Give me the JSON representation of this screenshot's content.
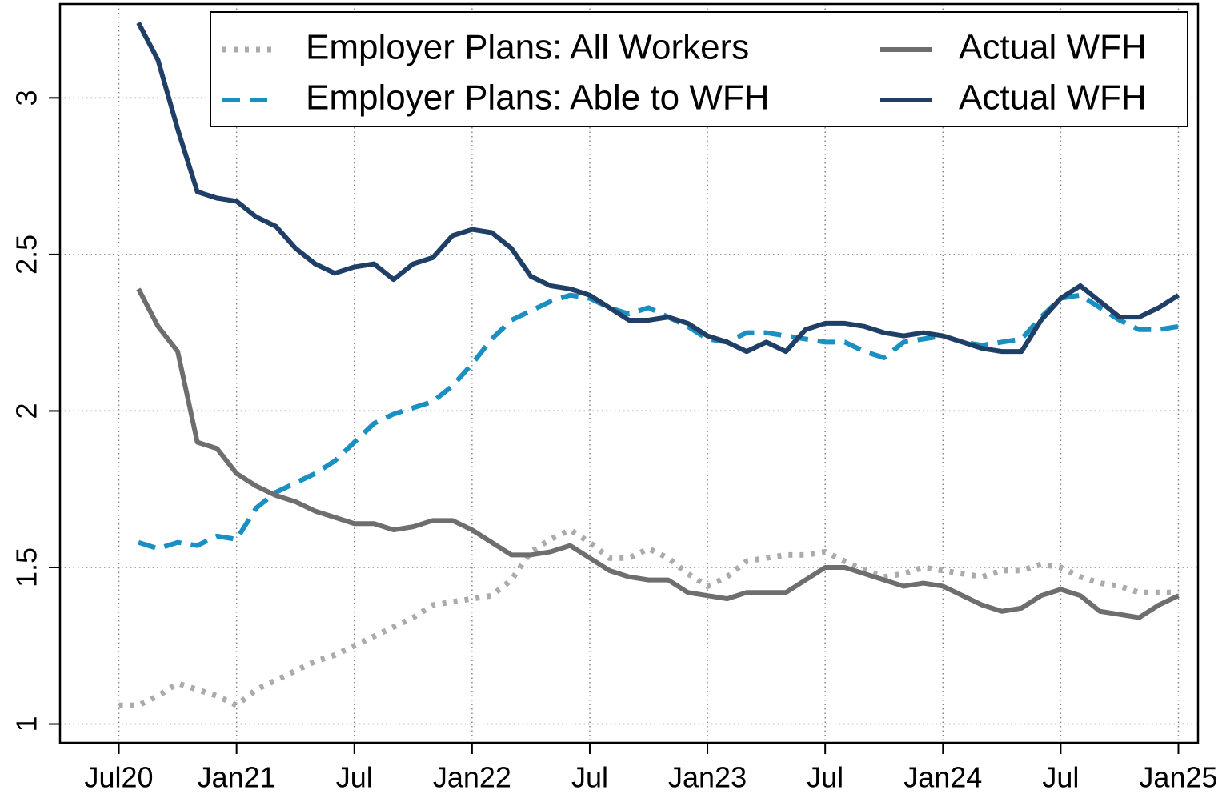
{
  "chart_data": {
    "type": "line",
    "x": [
      0,
      1,
      2,
      3,
      4,
      5,
      6,
      7,
      8,
      9,
      10,
      11,
      12,
      13,
      14,
      15,
      16,
      17,
      18,
      19,
      20,
      21,
      22,
      23,
      24,
      25,
      26,
      27,
      28,
      29,
      30,
      31,
      32,
      33,
      34,
      35,
      36,
      37,
      38,
      39,
      40,
      41,
      42,
      43,
      44,
      45,
      46,
      47,
      48,
      49,
      50,
      51,
      52,
      53,
      54
    ],
    "series": [
      {
        "name": "Employer Plans: All Workers",
        "color": "#ababab",
        "dash": "dotted",
        "values": [
          1.06,
          1.06,
          1.09,
          1.13,
          1.11,
          1.09,
          1.06,
          1.11,
          1.14,
          1.17,
          1.2,
          1.22,
          1.25,
          1.28,
          1.31,
          1.34,
          1.38,
          1.39,
          1.4,
          1.41,
          1.46,
          1.55,
          1.59,
          1.62,
          1.58,
          1.53,
          1.53,
          1.56,
          1.53,
          1.48,
          1.44,
          1.47,
          1.52,
          1.53,
          1.54,
          1.54,
          1.55,
          1.52,
          1.49,
          1.47,
          1.48,
          1.5,
          1.49,
          1.48,
          1.47,
          1.49,
          1.49,
          1.51,
          1.5,
          1.47,
          1.45,
          1.44,
          1.42,
          1.42,
          1.42
        ]
      },
      {
        "name": "Employer Plans: Able to WFH",
        "color": "#1a8fc2",
        "dash": "dashed",
        "values": [
          null,
          1.58,
          1.56,
          1.58,
          1.57,
          1.6,
          1.59,
          1.69,
          1.74,
          1.77,
          1.8,
          1.84,
          1.9,
          1.96,
          1.99,
          2.01,
          2.03,
          2.08,
          2.15,
          2.23,
          2.29,
          2.32,
          2.35,
          2.37,
          2.36,
          2.33,
          2.31,
          2.33,
          2.3,
          2.27,
          2.23,
          2.22,
          2.25,
          2.25,
          2.24,
          2.23,
          2.22,
          2.22,
          2.19,
          2.17,
          2.22,
          2.23,
          2.24,
          2.22,
          2.21,
          2.22,
          2.23,
          2.3,
          2.36,
          2.37,
          2.33,
          2.29,
          2.26,
          2.26,
          2.27
        ]
      },
      {
        "name": "Actual WFH",
        "color": "#6e6e6e",
        "dash": "solid",
        "values": [
          null,
          2.39,
          2.27,
          2.19,
          1.9,
          1.88,
          1.8,
          1.76,
          1.73,
          1.71,
          1.68,
          1.66,
          1.64,
          1.64,
          1.62,
          1.63,
          1.65,
          1.65,
          1.62,
          1.58,
          1.54,
          1.54,
          1.55,
          1.57,
          1.53,
          1.49,
          1.47,
          1.46,
          1.46,
          1.42,
          1.41,
          1.4,
          1.42,
          1.42,
          1.42,
          1.46,
          1.5,
          1.5,
          1.48,
          1.46,
          1.44,
          1.45,
          1.44,
          1.41,
          1.38,
          1.36,
          1.37,
          1.41,
          1.43,
          1.41,
          1.36,
          1.35,
          1.34,
          1.38,
          1.41
        ]
      },
      {
        "name": "Actual WFH",
        "color": "#1f3f66",
        "dash": "solid",
        "values": [
          null,
          3.24,
          3.12,
          2.9,
          2.7,
          2.68,
          2.67,
          2.62,
          2.59,
          2.52,
          2.47,
          2.44,
          2.46,
          2.47,
          2.42,
          2.47,
          2.49,
          2.56,
          2.58,
          2.57,
          2.52,
          2.43,
          2.4,
          2.39,
          2.37,
          2.33,
          2.29,
          2.29,
          2.3,
          2.28,
          2.24,
          2.22,
          2.19,
          2.22,
          2.19,
          2.26,
          2.28,
          2.28,
          2.27,
          2.25,
          2.24,
          2.25,
          2.24,
          2.22,
          2.2,
          2.19,
          2.19,
          2.29,
          2.36,
          2.4,
          2.35,
          2.3,
          2.3,
          2.33,
          2.37
        ]
      }
    ],
    "xlim": [
      -3,
      55
    ],
    "xticks": [
      {
        "value": 0,
        "label": "Jul20"
      },
      {
        "value": 6,
        "label": "Jan21"
      },
      {
        "value": 12,
        "label": "Jul"
      },
      {
        "value": 18,
        "label": "Jan22"
      },
      {
        "value": 24,
        "label": "Jul"
      },
      {
        "value": 30,
        "label": "Jan23"
      },
      {
        "value": 36,
        "label": "Jul"
      },
      {
        "value": 42,
        "label": "Jan24"
      },
      {
        "value": 48,
        "label": "Jul"
      },
      {
        "value": 54,
        "label": "Jan25"
      }
    ],
    "ylim": [
      0.94,
      3.3
    ],
    "yticks": [
      1,
      1.5,
      2,
      2.5,
      3
    ],
    "grid": true,
    "legend": "top-right"
  }
}
